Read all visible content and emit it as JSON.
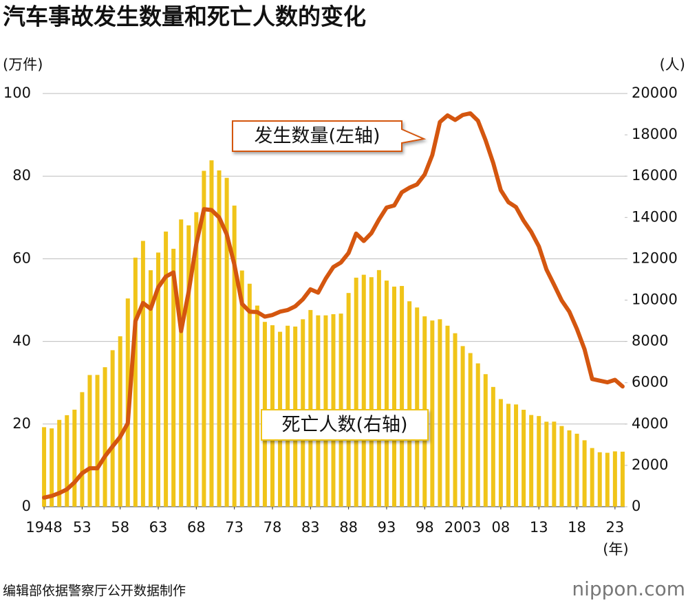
{
  "chart_data": {
    "type": "combo",
    "title": "汽车事故发生数量和死亡人数的变化",
    "y_unit": "(万件)",
    "y2_unit": "(人)",
    "x_unit": "(年)",
    "source": "编辑部依据警察厅公开数据制作",
    "logo": "nippon.com",
    "x": [
      1948,
      1949,
      1950,
      1951,
      1952,
      1953,
      1954,
      1955,
      1956,
      1957,
      1958,
      1959,
      1960,
      1961,
      1962,
      1963,
      1964,
      1965,
      1966,
      1967,
      1968,
      1969,
      1970,
      1971,
      1972,
      1973,
      1974,
      1975,
      1976,
      1977,
      1978,
      1979,
      1980,
      1981,
      1982,
      1983,
      1984,
      1985,
      1986,
      1987,
      1988,
      1989,
      1990,
      1991,
      1992,
      1993,
      1994,
      1995,
      1996,
      1997,
      1998,
      1999,
      2000,
      2001,
      2002,
      2003,
      2004,
      2005,
      2006,
      2007,
      2008,
      2009,
      2010,
      2011,
      2012,
      2013,
      2014,
      2015,
      2016,
      2017,
      2018,
      2019,
      2020,
      2021,
      2022,
      2023,
      2024
    ],
    "series": [
      {
        "name": "发生数量(左轴)",
        "type": "line",
        "axis": "y",
        "color": "#d4560f",
        "values": [
          2.2,
          2.6,
          3.3,
          4.2,
          5.9,
          8.1,
          9.3,
          9.3,
          12.2,
          14.6,
          16.9,
          20.2,
          44.9,
          49.3,
          47.9,
          53.1,
          55.7,
          56.7,
          42.5,
          52.1,
          63.6,
          72.0,
          71.8,
          70.0,
          65.9,
          58.6,
          49.1,
          47.2,
          47.1,
          46.0,
          46.4,
          47.2,
          47.6,
          48.5,
          50.2,
          52.6,
          51.8,
          55.2,
          58.0,
          59.1,
          61.4,
          66.1,
          64.3,
          66.2,
          69.5,
          72.4,
          72.9,
          76.1,
          77.2,
          78.0,
          80.4,
          85.1,
          93.1,
          94.7,
          93.6,
          94.8,
          95.2,
          93.4,
          88.7,
          83.2,
          76.6,
          73.7,
          72.5,
          69.2,
          66.5,
          63.0,
          57.4,
          53.7,
          49.9,
          47.2,
          43.0,
          38.1,
          30.9,
          30.5,
          30.1,
          30.7,
          29.1
        ]
      },
      {
        "name": "死亡人数(右轴)",
        "type": "bar",
        "axis": "y2",
        "color": "#f0c419",
        "values": [
          3848,
          3790,
          4202,
          4429,
          4696,
          5544,
          6374,
          6379,
          6751,
          7575,
          8248,
          10079,
          12055,
          12865,
          11445,
          12301,
          13318,
          12484,
          13904,
          13618,
          14256,
          16257,
          16765,
          16278,
          15918,
          14574,
          11432,
          10792,
          9734,
          8945,
          8783,
          8466,
          8760,
          8719,
          9073,
          9520,
          9262,
          9261,
          9317,
          9347,
          10344,
          11086,
          11227,
          11109,
          11452,
          10945,
          10653,
          10684,
          9943,
          9642,
          9214,
          9012,
          9073,
          8760,
          8396,
          7774,
          7436,
          6937,
          6415,
          5796,
          5209,
          4979,
          4948,
          4691,
          4438,
          4388,
          4113,
          4117,
          3904,
          3694,
          3532,
          3215,
          2839,
          2636,
          2610,
          2678,
          2663
        ]
      }
    ],
    "xlim": [
      1947,
      2025
    ],
    "xticks": [
      1948,
      {
        "value": 1953,
        "label": "53"
      },
      {
        "value": 1958,
        "label": "58"
      },
      {
        "value": 1963,
        "label": "63"
      },
      {
        "value": 1968,
        "label": "68"
      },
      {
        "value": 1973,
        "label": "73"
      },
      {
        "value": 1978,
        "label": "78"
      },
      {
        "value": 1983,
        "label": "83"
      },
      {
        "value": 1988,
        "label": "88"
      },
      {
        "value": 1993,
        "label": "93"
      },
      {
        "value": 1998,
        "label": "98"
      },
      2003,
      {
        "value": 2008,
        "label": "08"
      },
      {
        "value": 2013,
        "label": "13"
      },
      {
        "value": 2018,
        "label": "18"
      },
      {
        "value": 2023,
        "label": "23"
      }
    ],
    "ylim": [
      0,
      100
    ],
    "yticks": [
      0,
      20,
      40,
      60,
      80,
      100
    ],
    "y2lim": [
      0,
      20000
    ],
    "y2ticks": [
      0,
      2000,
      4000,
      6000,
      8000,
      10000,
      12000,
      14000,
      16000,
      18000,
      20000
    ],
    "grid": true
  }
}
